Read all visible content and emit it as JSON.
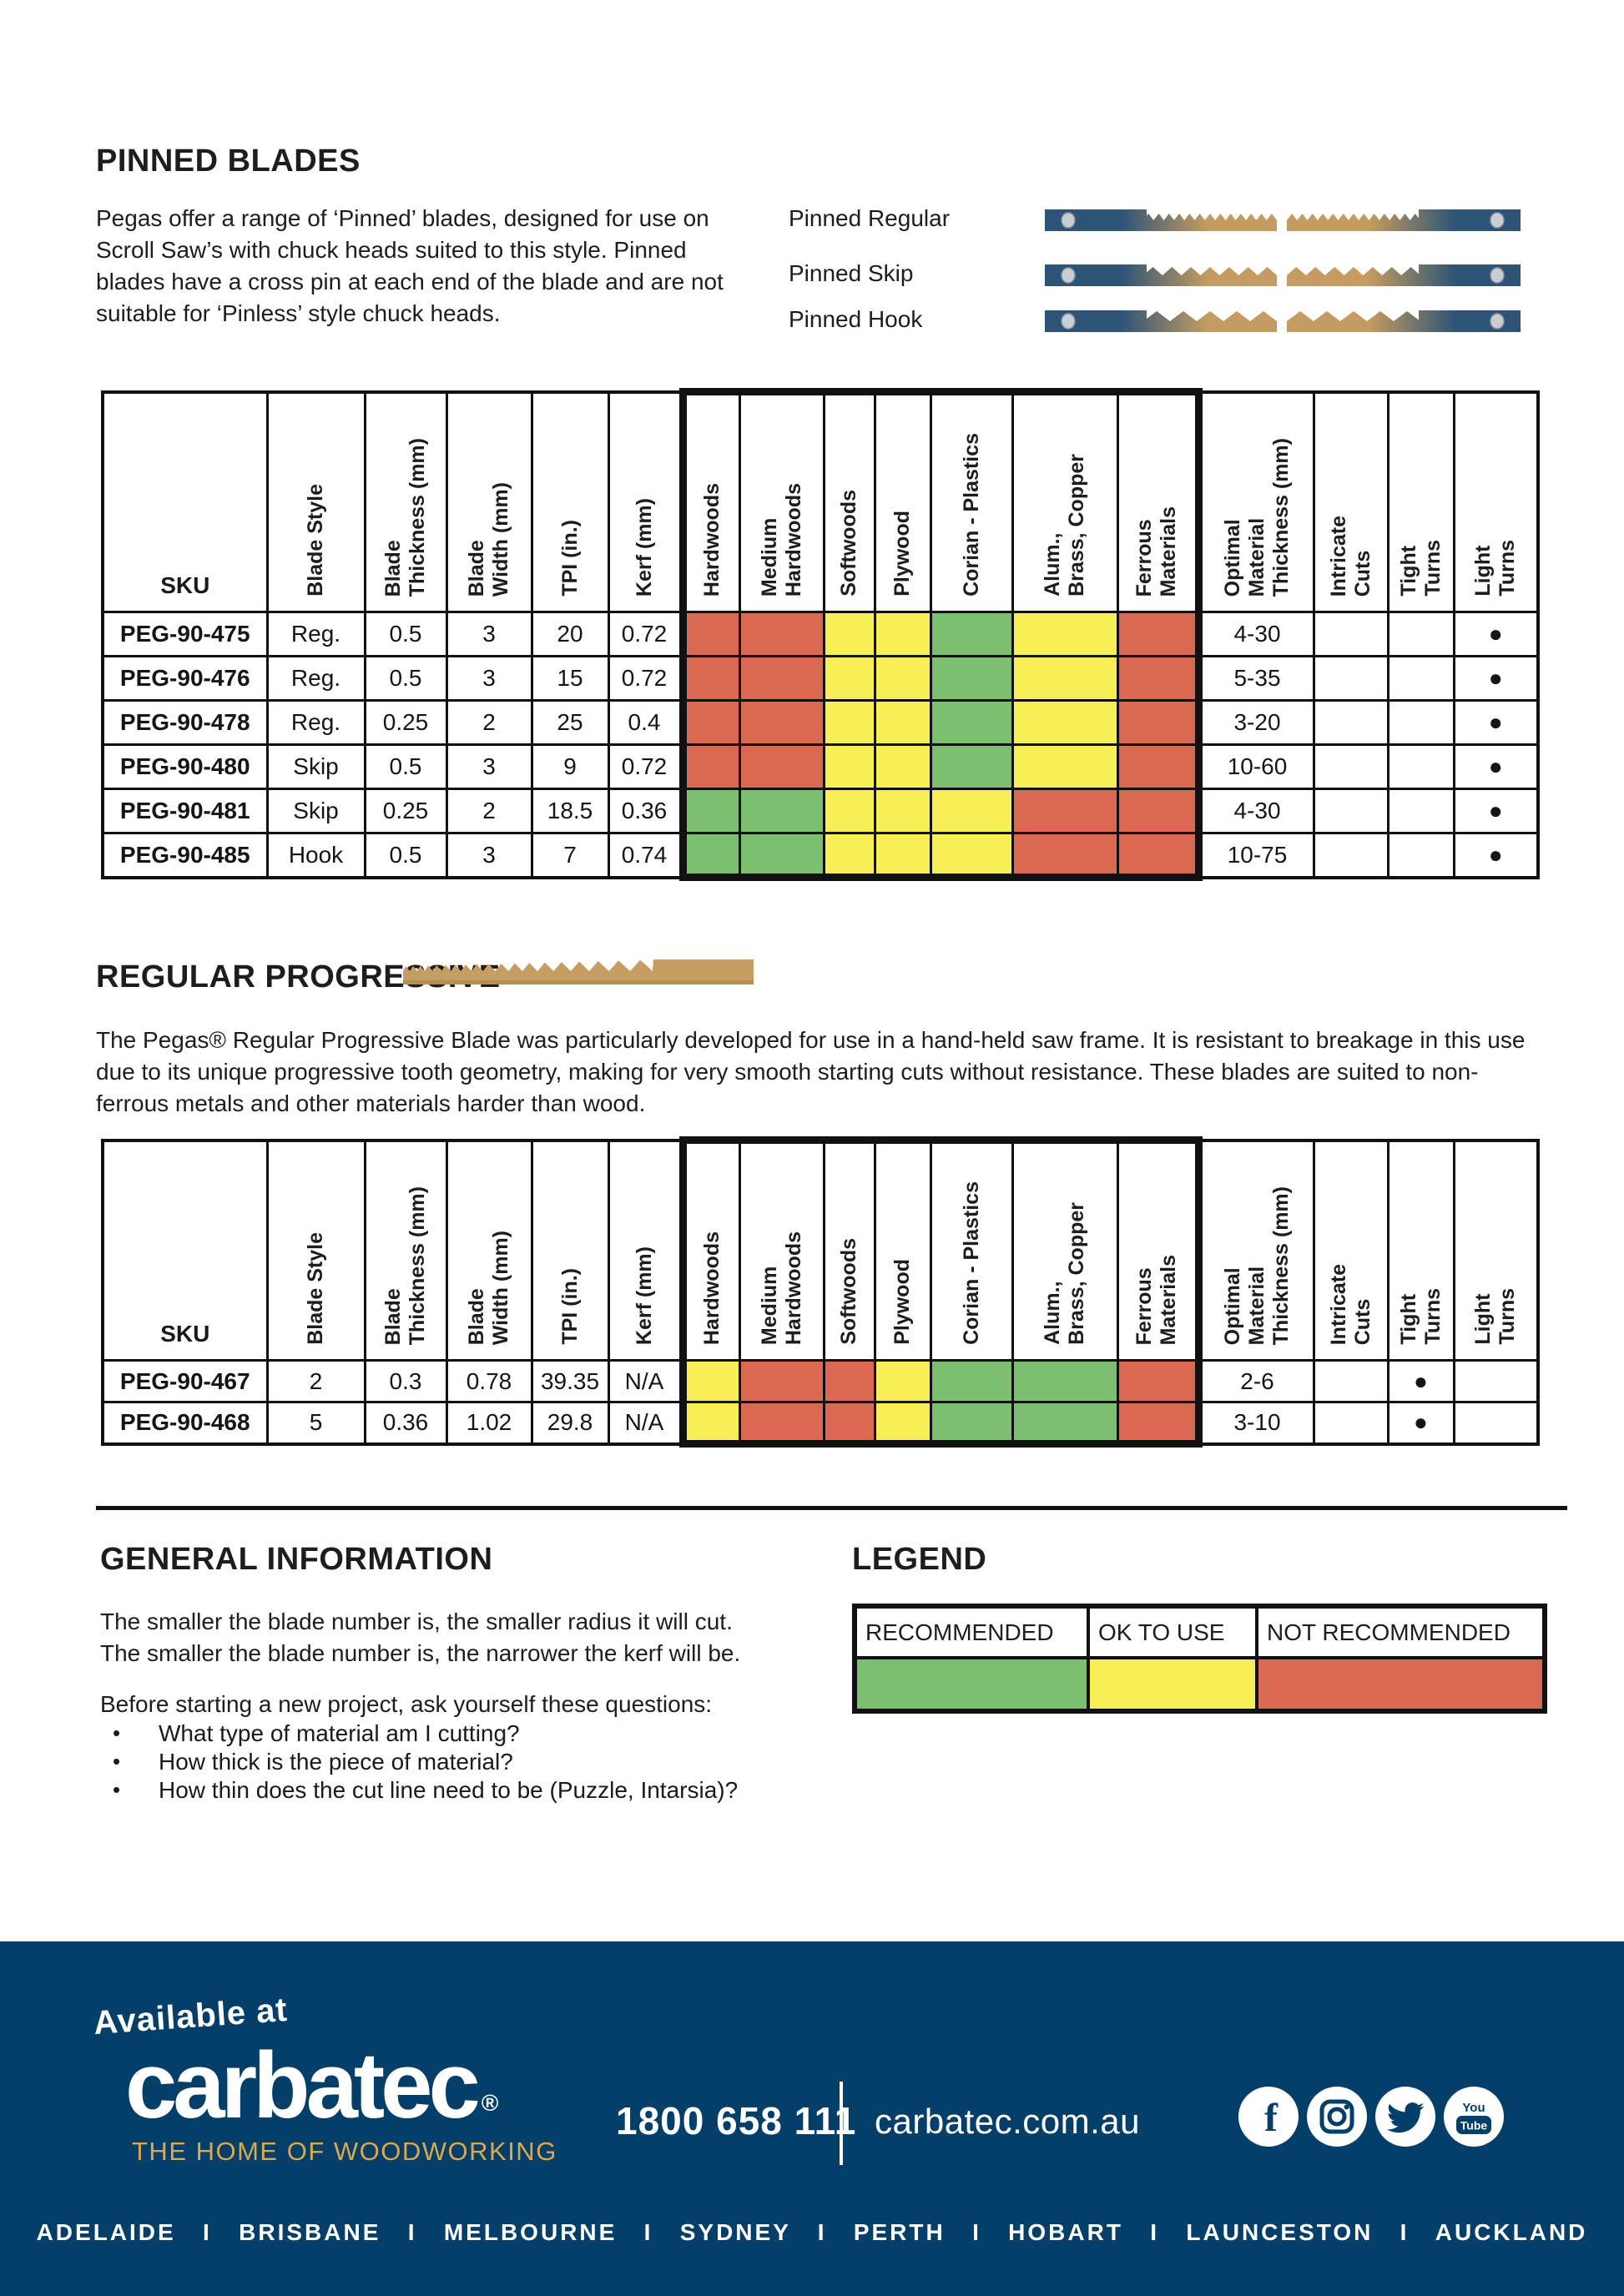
{
  "pinned": {
    "title": "PINNED BLADES",
    "description": "Pegas offer a range of ‘Pinned’ blades, designed for use on Scroll Saw’s with chuck heads suited to this style. Pinned blades have a cross pin at each end of the blade and are not suitable for ‘Pinless’ style chuck heads.",
    "blades": [
      {
        "label": "Pinned Regular"
      },
      {
        "label": "Pinned Skip"
      },
      {
        "label": "Pinned Hook"
      }
    ]
  },
  "progressive": {
    "title": "REGULAR PROGRESSIVE",
    "description": "The Pegas® Regular Progressive Blade was particularly developed for use in a hand-held saw frame. It is resistant to breakage in this use due to its unique progressive tooth geometry, making for very smooth starting cuts without resistance. These blades are suited to non-ferrous metals and other materials harder than wood."
  },
  "columns": [
    "SKU",
    "Blade Style",
    "Blade\nThickness (mm)",
    "Blade\nWidth (mm)",
    "TPI (in.)",
    "Kerf (mm)",
    "Hardwoods",
    "Medium\nHardwoods",
    "Softwoods",
    "Plywood",
    "Corian  - Plastics",
    "Alum.,\nBrass, Copper",
    "Ferrous\nMaterials",
    "Optimal\nMaterial\nThickness (mm)",
    "Intricate\nCuts",
    "Tight\nTurns",
    "Light\nTurns"
  ],
  "rating_colors": {
    "rec": "#7cbf6e",
    "ok": "#f8ee55",
    "nr": "#d96951"
  },
  "pinned_table": {
    "rows": [
      {
        "sku": "PEG-90-475",
        "specs": [
          "Reg.",
          "0.5",
          "3",
          "20",
          "0.72"
        ],
        "ratings": [
          "nr",
          "nr",
          "ok",
          "ok",
          "rec",
          "ok",
          "nr"
        ],
        "optimal": "4-30",
        "intricate": false,
        "tight": false,
        "light": true
      },
      {
        "sku": "PEG-90-476",
        "specs": [
          "Reg.",
          "0.5",
          "3",
          "15",
          "0.72"
        ],
        "ratings": [
          "nr",
          "nr",
          "ok",
          "ok",
          "rec",
          "ok",
          "nr"
        ],
        "optimal": "5-35",
        "intricate": false,
        "tight": false,
        "light": true
      },
      {
        "sku": "PEG-90-478",
        "specs": [
          "Reg.",
          "0.25",
          "2",
          "25",
          "0.4"
        ],
        "ratings": [
          "nr",
          "nr",
          "ok",
          "ok",
          "rec",
          "ok",
          "nr"
        ],
        "optimal": "3-20",
        "intricate": false,
        "tight": false,
        "light": true
      },
      {
        "sku": "PEG-90-480",
        "specs": [
          "Skip",
          "0.5",
          "3",
          "9",
          "0.72"
        ],
        "ratings": [
          "nr",
          "nr",
          "ok",
          "ok",
          "rec",
          "ok",
          "nr"
        ],
        "optimal": "10-60",
        "intricate": false,
        "tight": false,
        "light": true
      },
      {
        "sku": "PEG-90-481",
        "specs": [
          "Skip",
          "0.25",
          "2",
          "18.5",
          "0.36"
        ],
        "ratings": [
          "rec",
          "rec",
          "ok",
          "ok",
          "ok",
          "nr",
          "nr"
        ],
        "optimal": "4-30",
        "intricate": false,
        "tight": false,
        "light": true
      },
      {
        "sku": "PEG-90-485",
        "specs": [
          "Hook",
          "0.5",
          "3",
          "7",
          "0.74"
        ],
        "ratings": [
          "rec",
          "rec",
          "ok",
          "ok",
          "ok",
          "nr",
          "nr"
        ],
        "optimal": "10-75",
        "intricate": false,
        "tight": false,
        "light": true
      }
    ]
  },
  "progressive_table": {
    "rows": [
      {
        "sku": "PEG-90-467",
        "specs": [
          "2",
          "0.3",
          "0.78",
          "39.35",
          "N/A"
        ],
        "ratings": [
          "ok",
          "nr",
          "nr",
          "ok",
          "rec",
          "rec",
          "nr"
        ],
        "optimal": "2-6",
        "intricate": false,
        "tight": true,
        "light": false
      },
      {
        "sku": "PEG-90-468",
        "specs": [
          "5",
          "0.36",
          "1.02",
          "29.8",
          "N/A"
        ],
        "ratings": [
          "ok",
          "nr",
          "nr",
          "ok",
          "rec",
          "rec",
          "nr"
        ],
        "optimal": "3-10",
        "intricate": false,
        "tight": true,
        "light": false
      }
    ]
  },
  "general": {
    "title": "GENERAL INFORMATION",
    "line1": "The smaller the blade number is, the smaller radius it will cut.",
    "line2": "The smaller the blade number is, the narrower the kerf will be.",
    "intro": "Before starting a new project, ask yourself these questions:",
    "bullets": [
      "What type of material am I cutting?",
      "How thick is the piece of material?",
      "How thin does the cut line need to be (Puzzle, Intarsia)?"
    ]
  },
  "legend": {
    "title": "LEGEND",
    "items": [
      {
        "label": "RECOMMENDED",
        "rating": "rec"
      },
      {
        "label": "OK TO USE",
        "rating": "ok"
      },
      {
        "label": "NOT RECOMMENDED",
        "rating": "nr"
      }
    ]
  },
  "footer": {
    "available_at": "Available at",
    "brand": "carbatec",
    "registered": "®",
    "tagline": "THE HOME OF WOODWORKING",
    "phone": "1800 658 111",
    "website": "carbatec.com.au",
    "social": [
      "facebook",
      "instagram",
      "twitter",
      "youtube"
    ],
    "cities": [
      "ADELAIDE",
      "BRISBANE",
      "MELBOURNE",
      "SYDNEY",
      "PERTH",
      "HOBART",
      "LAUNCESTON",
      "AUCKLAND"
    ],
    "separator": "I"
  }
}
